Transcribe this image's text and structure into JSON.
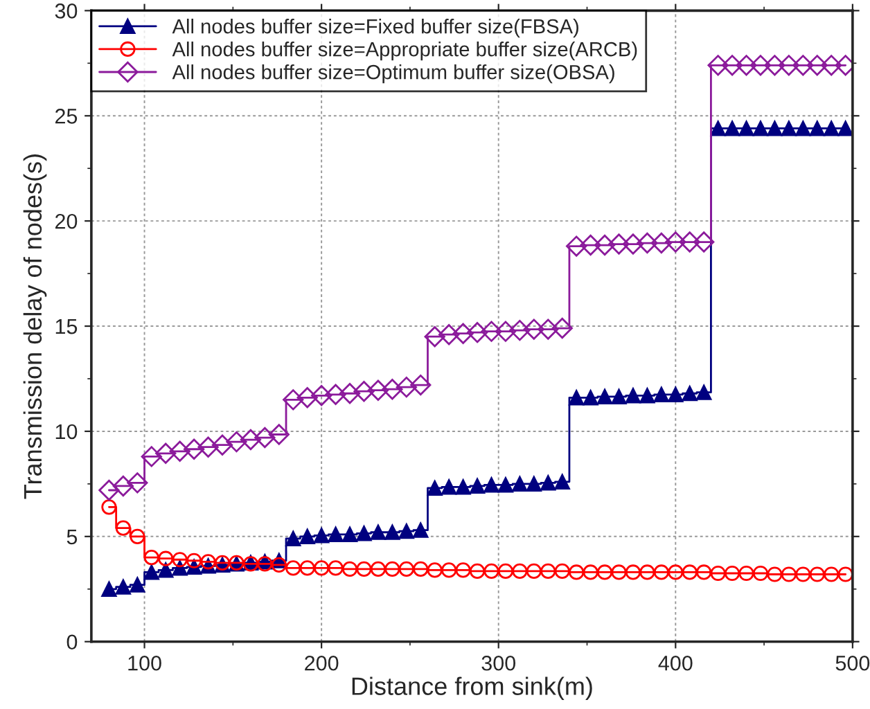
{
  "chart_data": {
    "type": "step",
    "xlabel": "Distance from sink(m)",
    "ylabel": "Transmission delay of nodes(s)",
    "x": [
      80,
      88,
      96,
      104,
      112,
      120,
      128,
      136,
      144,
      152,
      160,
      168,
      176,
      184,
      192,
      200,
      208,
      216,
      224,
      232,
      240,
      248,
      256,
      264,
      272,
      280,
      288,
      296,
      304,
      312,
      320,
      328,
      336,
      344,
      352,
      360,
      368,
      376,
      384,
      392,
      400,
      408,
      416,
      424,
      432,
      440,
      448,
      456,
      464,
      472,
      480,
      488,
      496
    ],
    "series": [
      {
        "name": "All nodes buffer size=Fixed buffer size(FBSA)",
        "color": "#000080",
        "marker": "triangle",
        "values": [
          2.5,
          2.6,
          2.7,
          3.3,
          3.4,
          3.5,
          3.55,
          3.6,
          3.65,
          3.7,
          3.75,
          3.8,
          3.85,
          4.9,
          5.0,
          5.05,
          5.1,
          5.1,
          5.15,
          5.2,
          5.2,
          5.25,
          5.3,
          7.3,
          7.35,
          7.35,
          7.4,
          7.45,
          7.45,
          7.5,
          7.5,
          7.55,
          7.6,
          11.6,
          11.6,
          11.65,
          11.65,
          11.7,
          11.7,
          11.75,
          11.75,
          11.8,
          11.85,
          24.4,
          24.4,
          24.4,
          24.4,
          24.4,
          24.4,
          24.4,
          24.4,
          24.4,
          24.4
        ]
      },
      {
        "name": "All nodes buffer size=Appropriate buffer size(ARCB)",
        "color": "#ff0000",
        "marker": "circle",
        "values": [
          6.4,
          5.4,
          5.0,
          4.0,
          3.95,
          3.9,
          3.85,
          3.8,
          3.75,
          3.75,
          3.7,
          3.7,
          3.65,
          3.5,
          3.5,
          3.5,
          3.5,
          3.45,
          3.45,
          3.45,
          3.45,
          3.45,
          3.45,
          3.4,
          3.4,
          3.4,
          3.35,
          3.35,
          3.35,
          3.35,
          3.35,
          3.35,
          3.35,
          3.3,
          3.3,
          3.3,
          3.3,
          3.3,
          3.3,
          3.3,
          3.3,
          3.3,
          3.3,
          3.25,
          3.25,
          3.25,
          3.25,
          3.2,
          3.2,
          3.2,
          3.2,
          3.2,
          3.2
        ]
      },
      {
        "name": "All nodes buffer size=Optimum buffer size(OBSA)",
        "color": "#8b1a9b",
        "marker": "diamond",
        "values": [
          7.2,
          7.4,
          7.55,
          8.8,
          8.95,
          9.05,
          9.15,
          9.25,
          9.35,
          9.5,
          9.6,
          9.7,
          9.85,
          11.5,
          11.6,
          11.7,
          11.75,
          11.8,
          11.9,
          11.95,
          12.0,
          12.1,
          12.2,
          14.5,
          14.6,
          14.65,
          14.7,
          14.75,
          14.75,
          14.8,
          14.85,
          14.85,
          14.9,
          18.8,
          18.85,
          18.85,
          18.9,
          18.9,
          18.95,
          18.95,
          19.0,
          19.0,
          19.0,
          27.4,
          27.4,
          27.4,
          27.4,
          27.4,
          27.4,
          27.4,
          27.4,
          27.4,
          27.4
        ]
      }
    ],
    "xlim": [
      70,
      500
    ],
    "ylim": [
      0,
      30
    ],
    "xticks": [
      100,
      200,
      300,
      400,
      500
    ],
    "yticks": [
      0,
      5,
      10,
      15,
      20,
      25,
      30
    ],
    "grid": true,
    "legend": "top left"
  }
}
